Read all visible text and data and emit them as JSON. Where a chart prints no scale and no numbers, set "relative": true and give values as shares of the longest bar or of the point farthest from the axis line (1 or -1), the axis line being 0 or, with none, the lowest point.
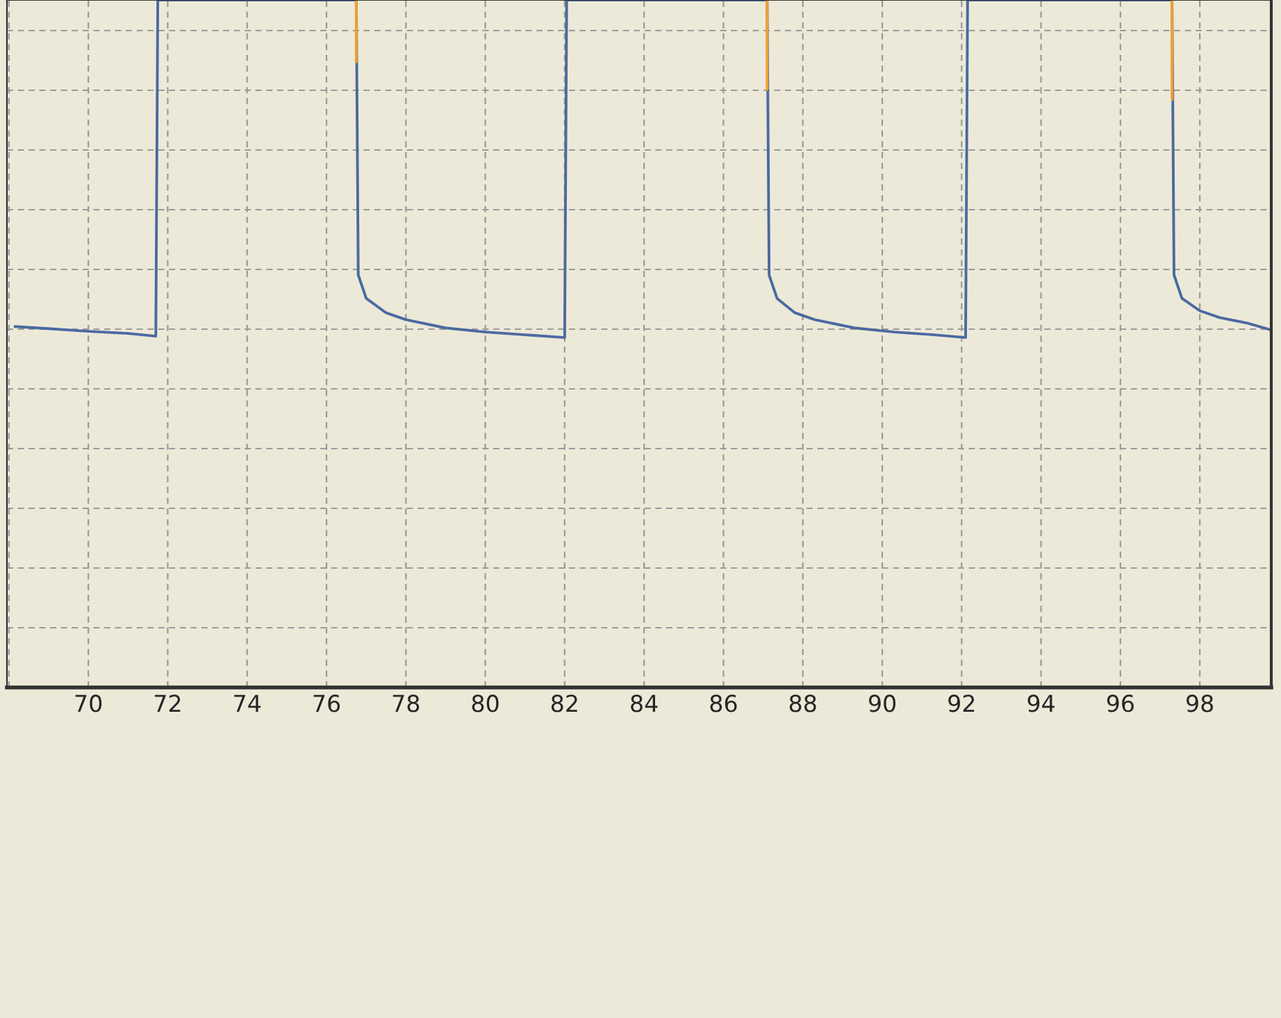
{
  "chart_data": {
    "type": "line",
    "relative": true,
    "grid": true,
    "tick_labels": "x",
    "marker": "none",
    "line_style": "solid",
    "xlim": [
      67.95,
      99.8
    ],
    "xticks": [
      {
        "value": 68,
        "label": null
      },
      70,
      72,
      74,
      76,
      78,
      80,
      82,
      84,
      86,
      88,
      90,
      92,
      94,
      96,
      98
    ],
    "series": [
      {
        "color": "#4a6aa0",
        "x": [
          68.15,
          69,
          70,
          71,
          71.7,
          71.75,
          76.75,
          76.8,
          77,
          77.5,
          78,
          79,
          80,
          81,
          82.0,
          82.05,
          87.1,
          87.15,
          87.35,
          87.8,
          88.3,
          89.3,
          90.3,
          91.3,
          92.1,
          92.15,
          97.3,
          97.35,
          97.55,
          98,
          98.5,
          99.2,
          99.8
        ],
        "values": [
          0.525,
          0.522,
          0.518,
          0.515,
          0.511,
          1,
          1,
          0.6,
          0.566,
          0.545,
          0.535,
          0.523,
          0.517,
          0.513,
          0.509,
          1,
          1,
          0.6,
          0.566,
          0.545,
          0.535,
          0.523,
          0.517,
          0.513,
          0.509,
          1,
          1,
          0.6,
          0.566,
          0.548,
          0.538,
          0.53,
          0.52
        ]
      },
      {
        "color": "#f0a030",
        "x": [
          76.75,
          76.75,
          76.76,
          87.1,
          87.1,
          87.11,
          97.3,
          97.3
        ],
        "values": [
          1,
          0.91,
          null,
          1,
          0.87,
          null,
          1,
          0.855
        ]
      }
    ]
  }
}
